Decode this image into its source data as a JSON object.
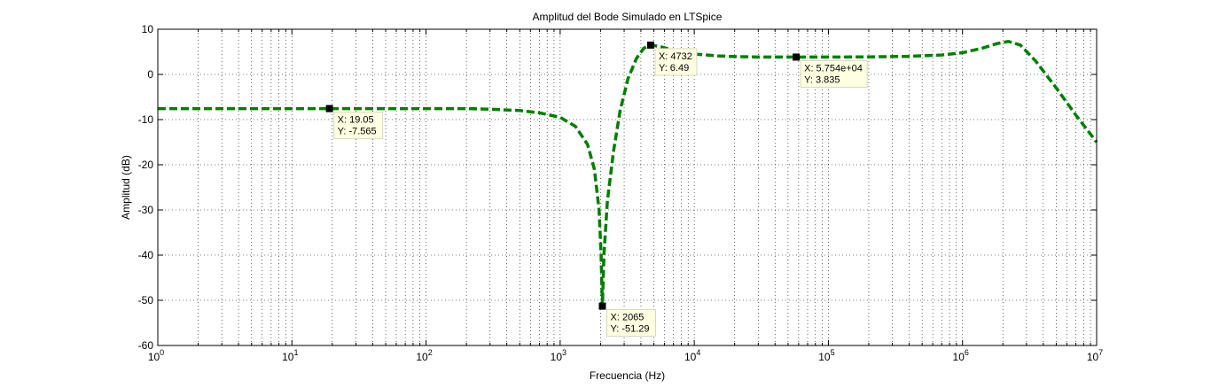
{
  "chart_data": {
    "type": "line",
    "title": "Amplitud del Bode Simulado en LTSpice",
    "xlabel": "Frecuencia (Hz)",
    "ylabel": "Amplitud (dB)",
    "xscale": "log",
    "xlim": [
      1,
      10000000
    ],
    "ylim": [
      -60,
      10
    ],
    "grid": true,
    "x_ticks": [
      {
        "base": "10",
        "exp": "0"
      },
      {
        "base": "10",
        "exp": "1"
      },
      {
        "base": "10",
        "exp": "2"
      },
      {
        "base": "10",
        "exp": "3"
      },
      {
        "base": "10",
        "exp": "4"
      },
      {
        "base": "10",
        "exp": "5"
      },
      {
        "base": "10",
        "exp": "6"
      },
      {
        "base": "10",
        "exp": "7"
      }
    ],
    "y_ticks": [
      "10",
      "0",
      "-10",
      "-20",
      "-30",
      "-40",
      "-50",
      "-60"
    ],
    "series": [
      {
        "color": "#007f00",
        "line_style": "dashed",
        "x": [
          1,
          10,
          19.05,
          100,
          200,
          300,
          500,
          700,
          1000,
          1300,
          1600,
          1800,
          1950,
          2020,
          2065,
          2120,
          2250,
          2500,
          2800,
          3200,
          3700,
          4200,
          4732,
          5500,
          6500,
          8000,
          10000,
          15000,
          20000,
          30000,
          57540,
          100000,
          200000,
          400000,
          700000,
          1000000,
          1400000,
          1800000,
          2200000,
          2700000,
          3500000,
          5000000,
          7000000,
          10000000
        ],
        "y": [
          -7.565,
          -7.565,
          -7.565,
          -7.565,
          -7.57,
          -7.7,
          -8.0,
          -8.5,
          -9.5,
          -11.5,
          -15.5,
          -21,
          -30,
          -40,
          -51.29,
          -40,
          -28,
          -17,
          -8,
          -1,
          3.5,
          5.8,
          6.49,
          6.2,
          5.6,
          4.9,
          4.5,
          4.1,
          3.95,
          3.85,
          3.835,
          3.84,
          3.88,
          4.0,
          4.3,
          4.8,
          5.8,
          6.8,
          7.3,
          6.5,
          3.0,
          -3.0,
          -9.0,
          -15.0
        ]
      }
    ],
    "data_tips": [
      {
        "x": 19.05,
        "y": -7.565,
        "x_text": "X: 19.05",
        "y_text": "Y: -7.565"
      },
      {
        "x": 4732,
        "y": 6.49,
        "x_text": "X: 4732",
        "y_text": "Y: 6.49"
      },
      {
        "x": 57540,
        "y": 3.835,
        "x_text": "X: 5.754e+04",
        "y_text": "Y: 3.835"
      },
      {
        "x": 2065,
        "y": -51.29,
        "x_text": "X: 2065",
        "y_text": "Y: -51.29"
      }
    ]
  }
}
